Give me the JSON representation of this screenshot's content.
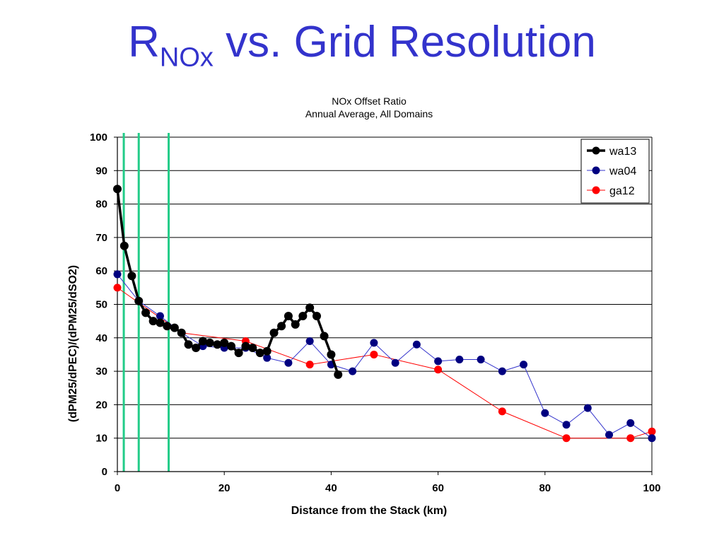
{
  "slide": {
    "title_main": "R",
    "title_sub": "NOx",
    "title_rest": " vs. Grid Resolution"
  },
  "chart_data": {
    "type": "line",
    "title": "NOx Offset Ratio",
    "subtitle": "Annual Average, All Domains",
    "xlabel": "Distance from the Stack (km)",
    "ylabel": "(dPM25/dPEC)/(dPM25/dSO2)",
    "xlim": [
      0,
      100
    ],
    "ylim": [
      0,
      100
    ],
    "xticks": [
      0,
      20,
      40,
      60,
      80,
      100
    ],
    "yticks": [
      0,
      10,
      20,
      30,
      40,
      50,
      60,
      70,
      80,
      90,
      100
    ],
    "grid": "horizontal",
    "legend": "top-right",
    "vertical_lines": {
      "color": "#22cc88",
      "x": [
        1.2,
        4,
        9.6
      ]
    },
    "series": [
      {
        "name": "wa13",
        "color": "#000000",
        "line_width": 3.5,
        "marker_radius": 6,
        "x": [
          0,
          1.3,
          2.7,
          4,
          5.3,
          6.7,
          8,
          9.3,
          10.7,
          12,
          13.3,
          14.7,
          16,
          17.3,
          18.7,
          20,
          21.3,
          22.7,
          24,
          25.3,
          26.7,
          28,
          29.3,
          30.7,
          32,
          33.3,
          34.7,
          36,
          37.3,
          38.7,
          40,
          41.3
        ],
        "y": [
          84.5,
          67.5,
          58.5,
          51,
          47.5,
          45,
          44.5,
          43.5,
          43,
          41.5,
          38,
          37,
          39,
          38.5,
          38,
          38.5,
          37.5,
          35.5,
          37.5,
          37,
          35.5,
          36,
          41.5,
          43.5,
          46.5,
          44,
          46.5,
          49,
          46.5,
          40.5,
          35,
          29
        ]
      },
      {
        "name": "wa04",
        "color": "#000080",
        "line_color": "#3333cc",
        "line_width": 1,
        "marker_radius": 5.5,
        "x": [
          0,
          4,
          8,
          12,
          16,
          20,
          24,
          28,
          32,
          36,
          40,
          44,
          48,
          52,
          56,
          60,
          64,
          68,
          72,
          76,
          80,
          84,
          88,
          92,
          96,
          100
        ],
        "y": [
          59,
          51,
          46.5,
          41.5,
          37.5,
          37,
          37,
          34,
          32.5,
          39,
          32,
          30,
          38.5,
          32.5,
          38,
          33,
          33.5,
          33.5,
          30,
          32,
          17.5,
          14,
          19,
          11,
          14.5,
          10
        ]
      },
      {
        "name": "ga12",
        "color": "#ff0000",
        "line_width": 1,
        "marker_radius": 5.5,
        "x": [
          0,
          12,
          24,
          36,
          48,
          60,
          72,
          84,
          96,
          100
        ],
        "y": [
          55,
          41.5,
          39,
          32,
          35,
          30.5,
          18,
          10,
          10,
          12
        ]
      }
    ]
  }
}
